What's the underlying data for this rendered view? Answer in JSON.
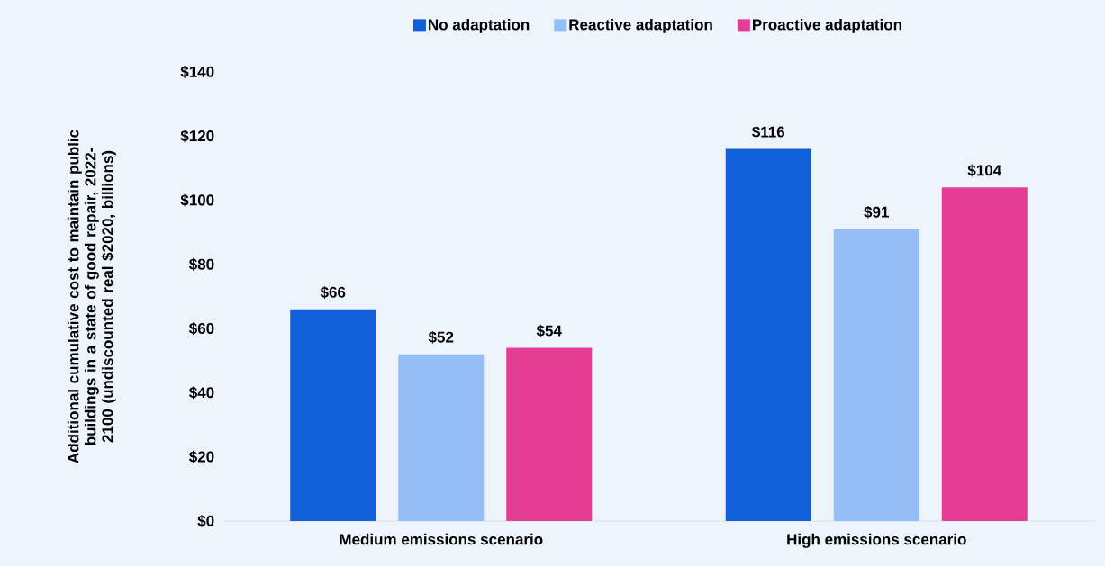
{
  "chart_data": {
    "type": "bar",
    "ylabel": "Additional cumulative cost to maintain public buildings in a state of good repair, 2022-2100 (undiscounted real $2020, billions)",
    "categories": [
      "Medium emissions scenario",
      "High emissions scenario"
    ],
    "series": [
      {
        "name": "No adaptation",
        "color": "#1160d8",
        "values": [
          66,
          116
        ],
        "value_labels": [
          "$66",
          "$116"
        ]
      },
      {
        "name": "Reactive adaptation",
        "color": "#95bdf6",
        "values": [
          52,
          91
        ],
        "value_labels": [
          "$52",
          "$91"
        ]
      },
      {
        "name": "Proactive adaptation",
        "color": "#e43e94",
        "values": [
          54,
          104
        ],
        "value_labels": [
          "$54",
          "$104"
        ]
      }
    ],
    "ylim": [
      0,
      140
    ],
    "yticks": [
      {
        "value": 0,
        "label": "$0"
      },
      {
        "value": 20,
        "label": "$20"
      },
      {
        "value": 40,
        "label": "$40"
      },
      {
        "value": 60,
        "label": "$60"
      },
      {
        "value": 80,
        "label": "$80"
      },
      {
        "value": 100,
        "label": "$100"
      },
      {
        "value": 120,
        "label": "$120"
      },
      {
        "value": 140,
        "label": "$140"
      }
    ],
    "legend": "top"
  }
}
